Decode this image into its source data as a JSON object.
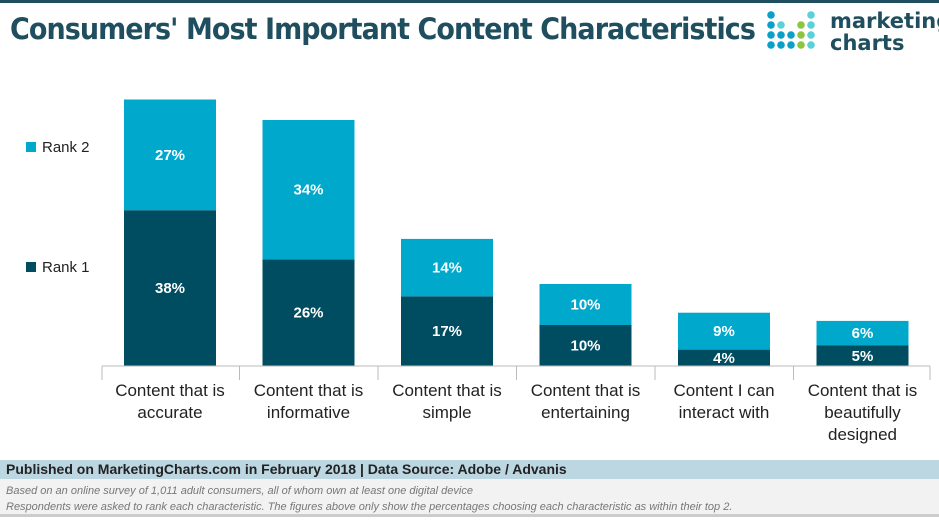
{
  "header": {
    "title": "Consumers' Most Important Content Characteristics",
    "logo_text": [
      "marketing",
      "charts"
    ]
  },
  "chart_data": {
    "type": "bar",
    "stacked": true,
    "categories": [
      [
        "Content that is",
        "accurate"
      ],
      [
        "Content that is",
        "informative"
      ],
      [
        "Content that is",
        "simple"
      ],
      [
        "Content that is",
        "entertaining"
      ],
      [
        "Content I can",
        "interact with"
      ],
      [
        "Content that is",
        "beautifully",
        "designed"
      ]
    ],
    "series": [
      {
        "name": "Rank 1",
        "color": "#004d61",
        "values": [
          38,
          26,
          17,
          10,
          4,
          5
        ]
      },
      {
        "name": "Rank 2",
        "color": "#00a9cc",
        "values": [
          27,
          34,
          14,
          10,
          9,
          6
        ]
      }
    ],
    "data_label_suffix": "%",
    "ylim": [
      0,
      65
    ],
    "grid": false,
    "legend": "left"
  },
  "footer": {
    "source": "Published on MarketingCharts.com in February 2018 | Data Source: Adobe / Advanis",
    "notes": [
      "Based on an online survey of 1,011 adult consumers, all of whom own at least one digital device",
      "Respondents were asked to rank each characteristic. The figures above only show the percentages choosing each characteristic as within their top 2."
    ]
  }
}
